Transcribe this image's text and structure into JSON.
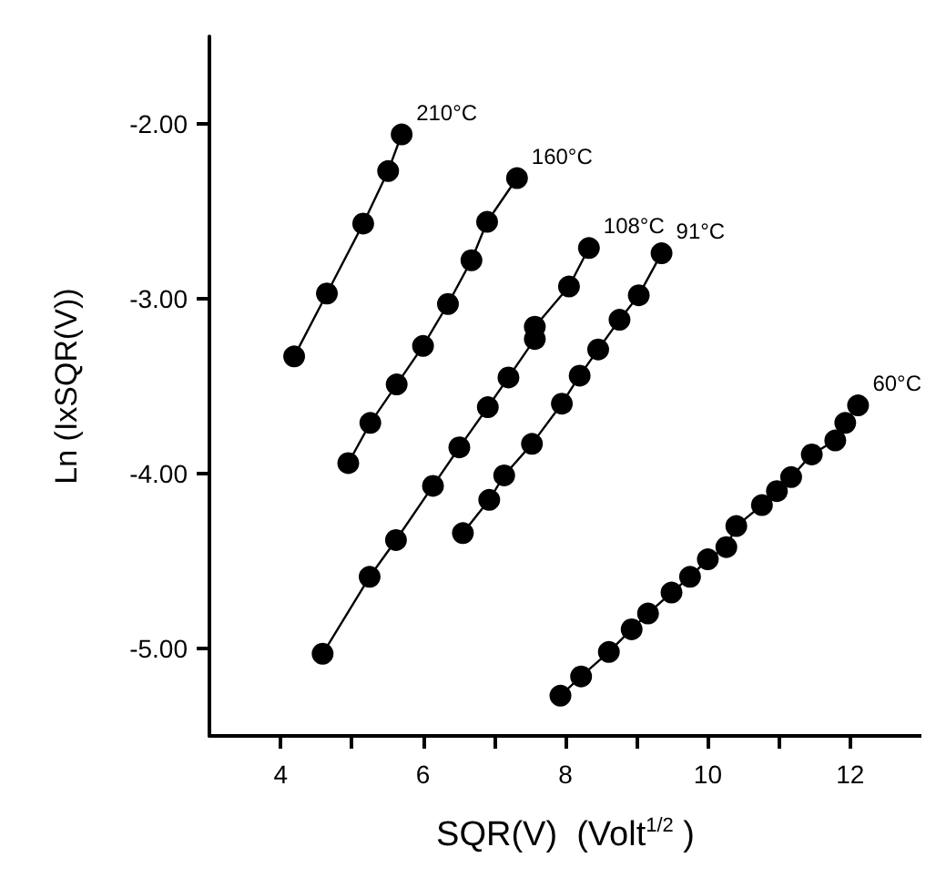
{
  "chart_data": {
    "type": "line",
    "xlabel": "SQR(V)  (Volt$^{1/2}$ )",
    "ylabel": "Ln (IxSQR(V))",
    "xlim": [
      3,
      13
    ],
    "ylim": [
      -5.5,
      -1.5
    ],
    "xticks": [
      4,
      {
        "value": 5,
        "label": null
      },
      6,
      {
        "value": 7,
        "label": null
      },
      8,
      {
        "value": 9,
        "label": null
      },
      10,
      {
        "value": 11,
        "label": null
      },
      12
    ],
    "yticks": [
      {
        "value": -5,
        "label": "-5.00"
      },
      {
        "value": -4,
        "label": "-4.00"
      },
      {
        "value": -3,
        "label": "-3.00"
      },
      {
        "value": -2,
        "label": "-2.00"
      }
    ],
    "grid": false,
    "legend": false,
    "marker": "circle",
    "line_style": "solid",
    "series": [
      {
        "name": "210°C",
        "color": "#000000",
        "x": [
          4.19,
          4.65,
          5.16,
          5.51,
          5.7
        ],
        "values": [
          -3.33,
          -2.97,
          -2.57,
          -2.27,
          -2.06
        ]
      },
      {
        "name": "160°C",
        "color": "#000000",
        "x": [
          4.95,
          5.26,
          5.63,
          6.0,
          6.35,
          6.68,
          6.9,
          7.32
        ],
        "values": [
          -3.94,
          -3.71,
          -3.49,
          -3.27,
          -3.03,
          -2.78,
          -2.56,
          -2.31
        ]
      },
      {
        "name": "108°C",
        "color": "#000000",
        "x": [
          4.59,
          5.25,
          5.62,
          6.14,
          6.51,
          6.91,
          7.2,
          7.57,
          7.57,
          8.05,
          8.33
        ],
        "values": [
          -5.03,
          -4.59,
          -4.38,
          -4.07,
          -3.85,
          -3.62,
          -3.45,
          -3.23,
          -3.16,
          -2.93,
          -2.71
        ]
      },
      {
        "name": "91°C",
        "color": "#000000",
        "x": [
          6.56,
          6.93,
          7.14,
          7.53,
          7.95,
          8.2,
          8.46,
          8.76,
          9.03,
          9.35
        ],
        "values": [
          -4.34,
          -4.15,
          -4.01,
          -3.83,
          -3.6,
          -3.44,
          -3.29,
          -3.12,
          -2.98,
          -2.74
        ]
      },
      {
        "name": "60°C",
        "color": "#000000",
        "x": [
          7.93,
          8.22,
          8.61,
          8.93,
          9.16,
          9.49,
          9.75,
          10.0,
          10.26,
          10.4,
          10.76,
          10.97,
          11.17,
          11.46,
          11.79,
          11.93,
          12.11
        ],
        "values": [
          -5.27,
          -5.16,
          -5.02,
          -4.89,
          -4.8,
          -4.68,
          -4.59,
          -4.49,
          -4.42,
          -4.3,
          -4.18,
          -4.1,
          -4.02,
          -3.89,
          -3.81,
          -3.71,
          -3.61
        ]
      }
    ]
  }
}
